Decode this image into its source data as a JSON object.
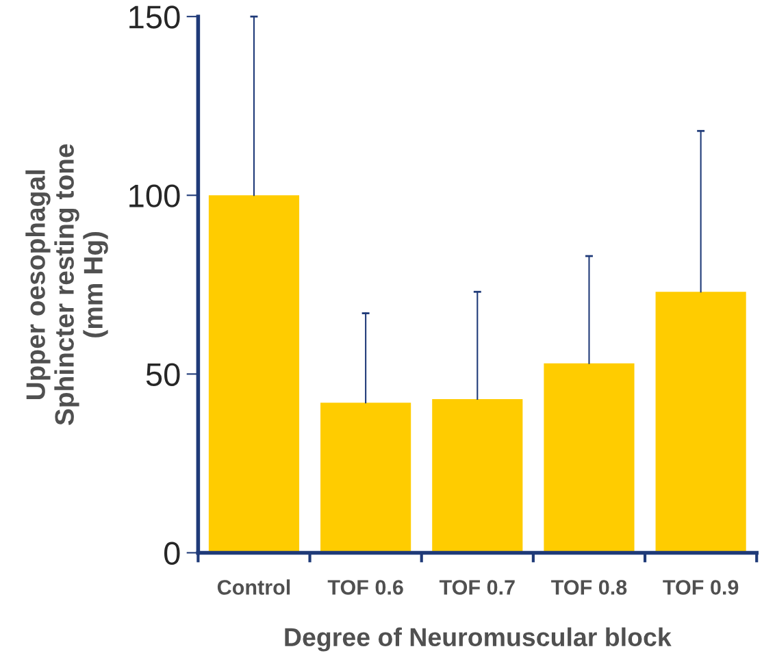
{
  "chart_data": {
    "type": "bar",
    "xlabel": "Degree of Neuromuscular block",
    "ylabel": "Upper oesophagal\nSphincter resting tone\n(mm Hg)",
    "categories": [
      "Control",
      "TOF 0.6",
      "TOF 0.7",
      "TOF 0.8",
      "TOF 0.9"
    ],
    "values": [
      100,
      42,
      43,
      53,
      73
    ],
    "errors": [
      [
        100,
        150
      ],
      [
        42,
        67
      ],
      [
        43,
        73
      ],
      [
        53,
        83
      ],
      [
        73,
        118
      ]
    ],
    "color": "#ffcc00",
    "ylim": [
      0,
      150
    ],
    "yticks": [
      0,
      50,
      100,
      150
    ],
    "grid": false,
    "legend": false
  }
}
